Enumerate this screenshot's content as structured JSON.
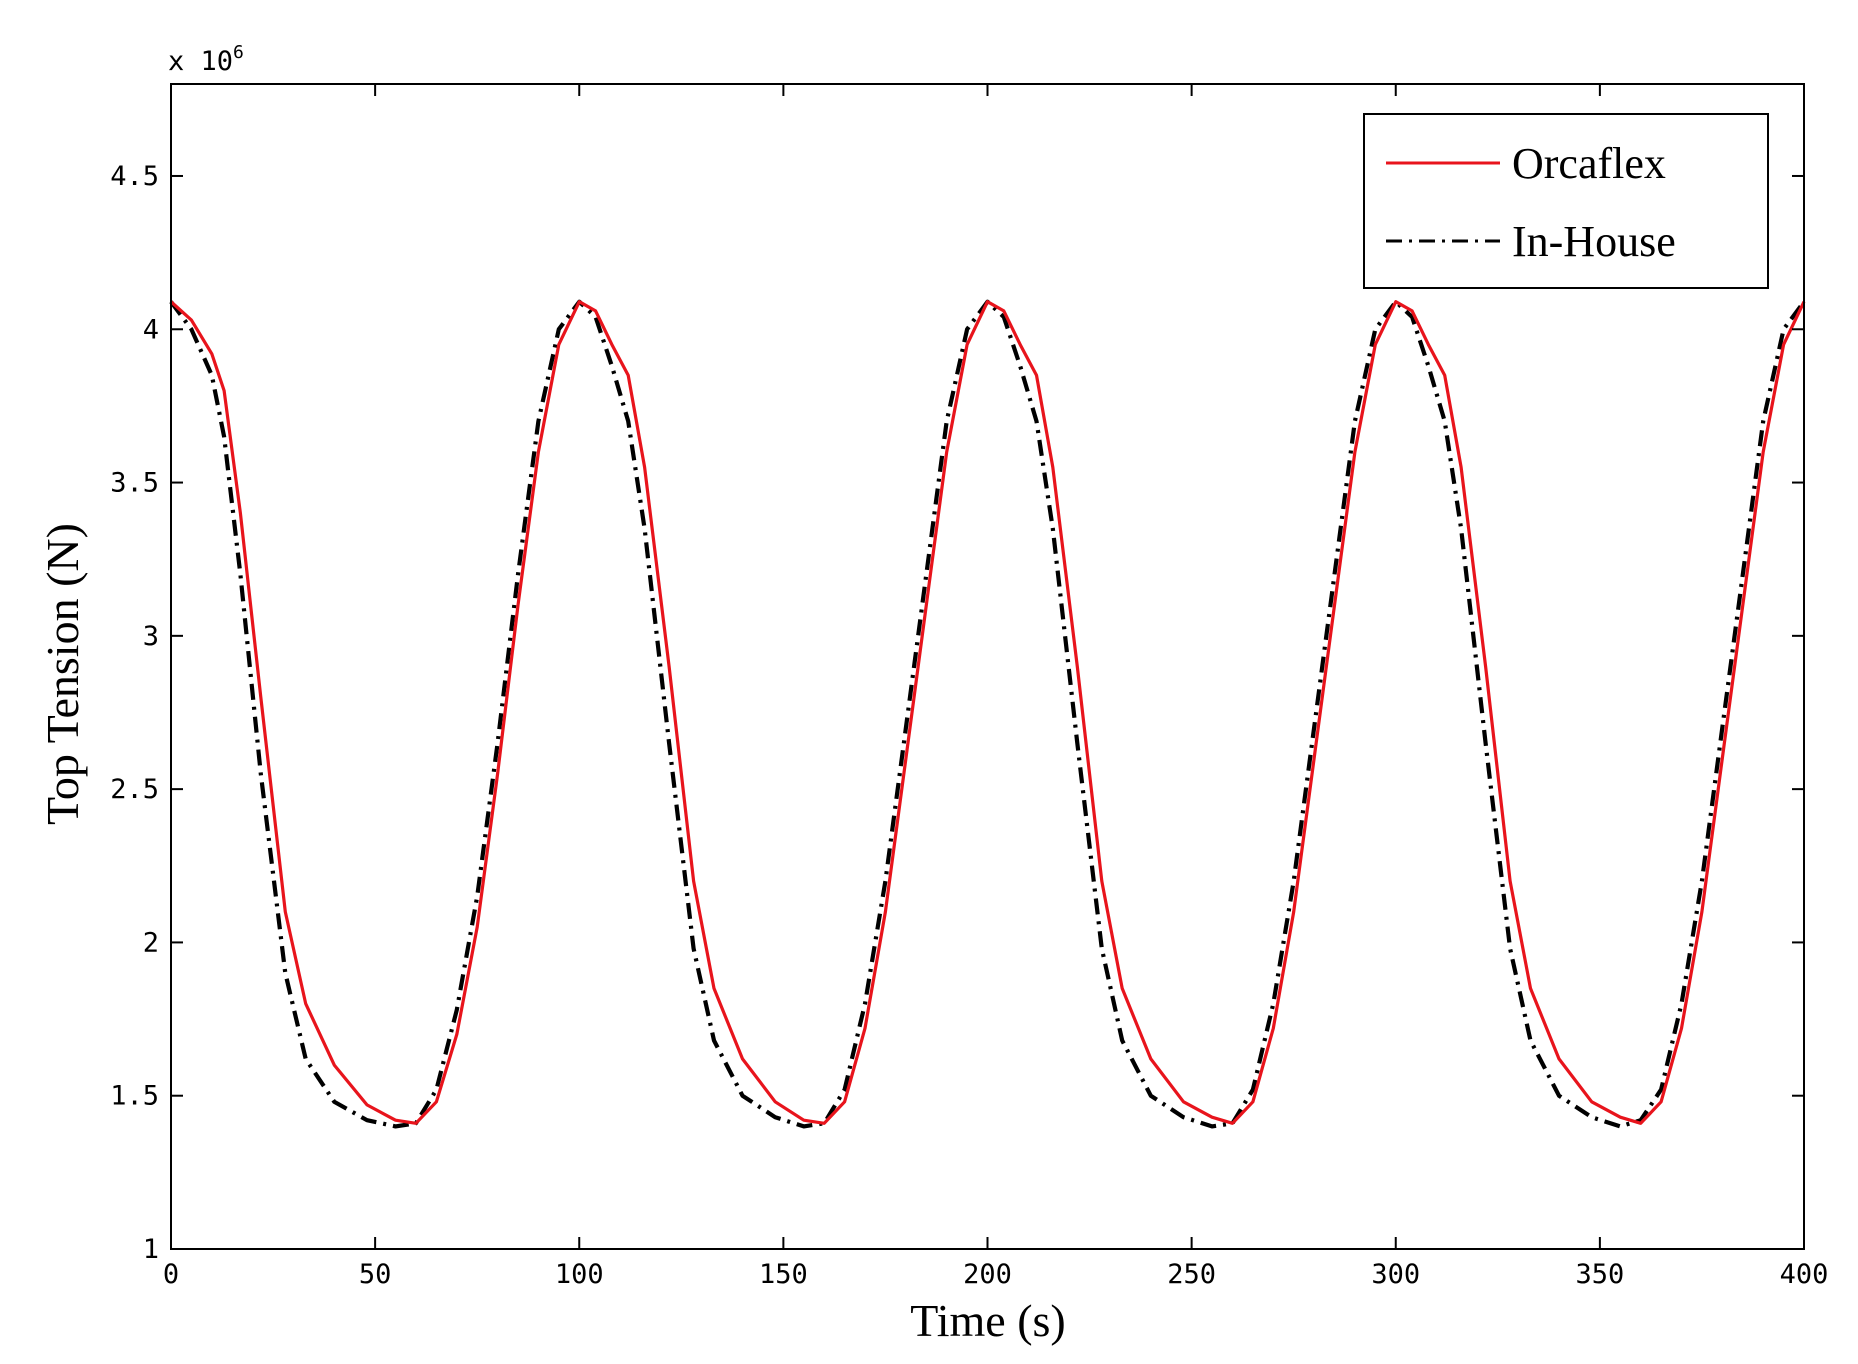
{
  "chart_data": {
    "type": "line",
    "title": "",
    "xlabel": "Time (s)",
    "ylabel": "Top Tension (N)",
    "y_multiplier_label": {
      "base": "x 10",
      "exponent": "6"
    },
    "xlim": [
      0,
      400
    ],
    "ylim": [
      1,
      4.8
    ],
    "x_ticks": [
      0,
      50,
      100,
      150,
      200,
      250,
      300,
      350,
      400
    ],
    "y_ticks": [
      1,
      1.5,
      2,
      2.5,
      3,
      3.5,
      4,
      4.5
    ],
    "x_tick_labels": [
      "0",
      "50",
      "100",
      "150",
      "200",
      "250",
      "300",
      "350",
      "400"
    ],
    "y_tick_labels": [
      "1",
      "1.5",
      "2",
      "2.5",
      "3",
      "3.5",
      "4",
      "4.5"
    ],
    "grid": false,
    "legend_position": "top-right",
    "series": [
      {
        "name": "Orcaflex",
        "color": "#e8141c",
        "style": "solid",
        "x": [
          0,
          5,
          10,
          13,
          17,
          22,
          28,
          33,
          40,
          48,
          55,
          60,
          65,
          70,
          75,
          80,
          85,
          90,
          95,
          100,
          104,
          108,
          112,
          116,
          122,
          128,
          133,
          140,
          148,
          155,
          160,
          165,
          170,
          175,
          180,
          185,
          190,
          195,
          200,
          204,
          208,
          212,
          216,
          222,
          228,
          233,
          240,
          248,
          255,
          260,
          265,
          270,
          275,
          280,
          285,
          290,
          295,
          300,
          304,
          308,
          312,
          316,
          322,
          328,
          333,
          340,
          348,
          355,
          360,
          365,
          370,
          375,
          380,
          385,
          390,
          395,
          400
        ],
        "y": [
          4.09,
          4.03,
          3.92,
          3.8,
          3.4,
          2.8,
          2.1,
          1.8,
          1.6,
          1.47,
          1.42,
          1.41,
          1.48,
          1.7,
          2.05,
          2.55,
          3.1,
          3.6,
          3.95,
          4.09,
          4.06,
          3.95,
          3.85,
          3.55,
          2.9,
          2.2,
          1.85,
          1.62,
          1.48,
          1.42,
          1.41,
          1.48,
          1.72,
          2.1,
          2.6,
          3.1,
          3.6,
          3.95,
          4.09,
          4.06,
          3.95,
          3.85,
          3.55,
          2.9,
          2.2,
          1.85,
          1.62,
          1.48,
          1.43,
          1.41,
          1.48,
          1.72,
          2.1,
          2.6,
          3.1,
          3.6,
          3.95,
          4.09,
          4.06,
          3.95,
          3.85,
          3.55,
          2.9,
          2.2,
          1.85,
          1.62,
          1.48,
          1.43,
          1.41,
          1.48,
          1.72,
          2.1,
          2.6,
          3.1,
          3.6,
          3.95,
          4.09
        ]
      },
      {
        "name": "In-House",
        "color": "#000000",
        "style": "dashdot",
        "x": [
          0,
          5,
          10,
          13,
          17,
          22,
          28,
          33,
          40,
          48,
          55,
          60,
          65,
          70,
          75,
          80,
          85,
          90,
          95,
          100,
          104,
          108,
          112,
          116,
          122,
          128,
          133,
          140,
          148,
          155,
          160,
          165,
          170,
          175,
          180,
          185,
          190,
          195,
          200,
          204,
          208,
          212,
          216,
          222,
          228,
          233,
          240,
          248,
          255,
          260,
          265,
          270,
          275,
          280,
          285,
          290,
          295,
          300,
          304,
          308,
          312,
          316,
          322,
          328,
          333,
          340,
          348,
          355,
          360,
          365,
          370,
          375,
          380,
          385,
          390,
          395,
          400
        ],
        "y": [
          4.09,
          4.0,
          3.85,
          3.65,
          3.2,
          2.55,
          1.9,
          1.62,
          1.48,
          1.42,
          1.4,
          1.41,
          1.52,
          1.78,
          2.15,
          2.65,
          3.2,
          3.7,
          4.0,
          4.09,
          4.04,
          3.88,
          3.7,
          3.35,
          2.65,
          1.98,
          1.68,
          1.5,
          1.43,
          1.4,
          1.41,
          1.52,
          1.8,
          2.2,
          2.7,
          3.2,
          3.7,
          4.0,
          4.09,
          4.04,
          3.88,
          3.7,
          3.35,
          2.65,
          1.98,
          1.68,
          1.5,
          1.43,
          1.4,
          1.41,
          1.52,
          1.8,
          2.2,
          2.7,
          3.2,
          3.7,
          4.0,
          4.09,
          4.04,
          3.88,
          3.7,
          3.35,
          2.65,
          1.98,
          1.68,
          1.5,
          1.43,
          1.4,
          1.42,
          1.52,
          1.8,
          2.2,
          2.7,
          3.2,
          3.7,
          4.0,
          4.09
        ]
      }
    ]
  }
}
